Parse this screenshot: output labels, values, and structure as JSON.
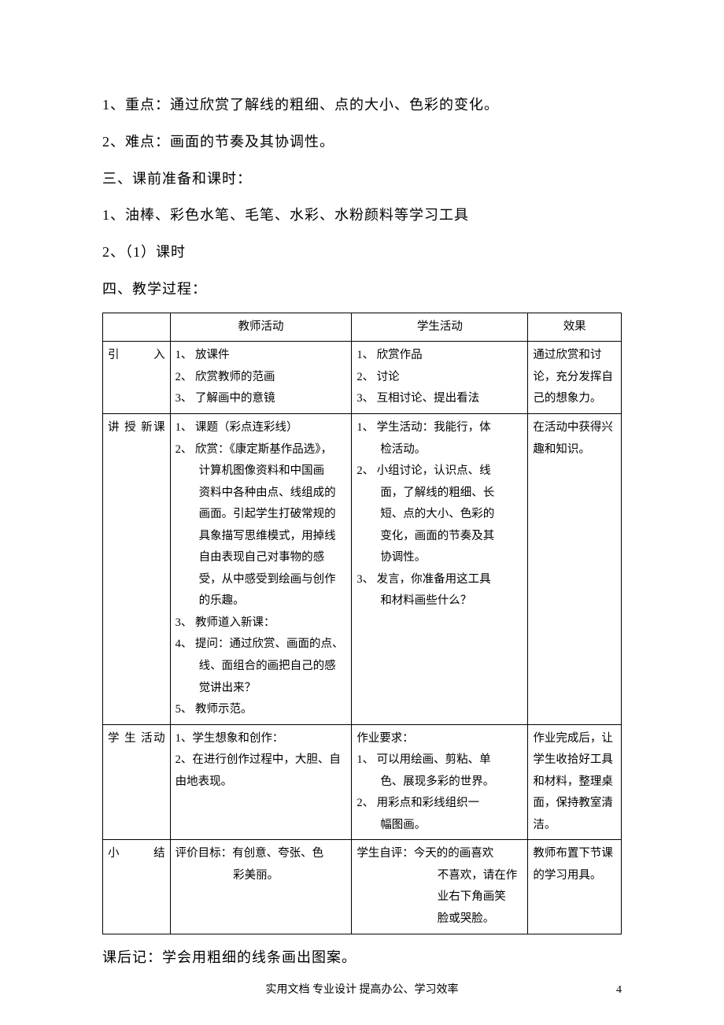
{
  "paragraphs": {
    "p1": "1、重点：通过欣赏了解线的粗细、点的大小、色彩的变化。",
    "p2": "2、难点：画面的节奏及其协调性。",
    "p3": "三、课前准备和课时：",
    "p4": "1、油棒、彩色水笔、毛笔、水彩、水粉颜料等学习工具",
    "p5": "2、（1）课时",
    "p6": "四、教学过程："
  },
  "table": {
    "headers": {
      "stage": "",
      "teacher": "教师活动",
      "student": "学生活动",
      "effect": "效果"
    },
    "rows": [
      {
        "stage": "引入",
        "teacher": "1、 放课件\n2、 欣赏教师的范画\n3、 了解画中的意镜",
        "student": "1、 欣赏作品\n2、 讨论\n3、 互相讨论、提出看法",
        "effect": "通过欣赏和讨论，充分发挥自己的想象力。"
      },
      {
        "stage": "讲授新课",
        "teacher": "1、 课题（彩点连彩线）\n2、 欣赏：《康定斯基作品选》，计算机图像资料和中国画资料中各种由点、线组成的画面。引起学生打破常规的具象描写思维模式，用掉线自由表现自己对事物的感受，从中感受到绘画与创作的乐趣。\n3、 教师道入新课：\n4、 提问：通过欣赏、画面的点、线、面组合的画把自己的感觉讲出来？\n5、 教师示范。",
        "student": "1、 学生活动：我能行，体检活动。\n2、 小组讨论，认识点、线面，了解线的粗细、长短、点的大小、色彩的变化，画面的节奏及其协调性。\n3、 发言，你准备用这工具和材料画些什么？",
        "effect": "在活动中获得兴趣和知识。"
      },
      {
        "stage": "学生活动",
        "teacher": "1、学生想象和创作：\n2、在进行创作过程中，大胆、自由地表现。",
        "student": "作业要求：\n1、 可以用绘画、剪粘、单色、展现多彩的世界。\n2、 用彩点和彩线组织一幅图画。",
        "effect": "作业完成后，让学生收拾好工具和材料，整理桌面，保持教室清洁。"
      },
      {
        "stage": "小结",
        "teacher": "评价目标：有创意、夸张、色彩美丽。",
        "student": "学生自评：今天的的画喜欢不喜欢，请在作业右下角画笑脸或哭脸。",
        "effect": "教师布置下节课的学习用具。"
      }
    ]
  },
  "after_table": "课后记：学会用粗细的线条画出图案。",
  "footer": "实用文档 专业设计 提高办公、学习效率",
  "page_number": "4",
  "styling": {
    "background_color": "#ffffff",
    "text_color": "#000000",
    "body_fontsize": 18,
    "table_fontsize": 14.5,
    "footer_fontsize": 14,
    "table_border_color": "#000000",
    "font_family": "SimSun"
  }
}
